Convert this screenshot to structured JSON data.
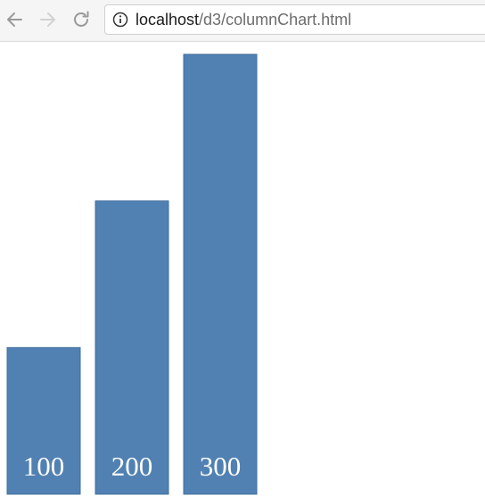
{
  "browser": {
    "url_host": "localhost",
    "url_path": "/d3/columnChart.html",
    "icons": {
      "back": "arrow-left-icon",
      "forward": "arrow-right-icon",
      "reload": "reload-icon",
      "info": "info-icon"
    }
  },
  "chart_data": {
    "type": "bar",
    "values": [
      100,
      200,
      300
    ],
    "labels": [
      "100",
      "200",
      "300"
    ],
    "ylim": [
      0,
      300
    ],
    "bar_color": "#5181b2",
    "label_color": "#ffffff",
    "grid": false,
    "axes_visible": false,
    "legend": "none"
  }
}
